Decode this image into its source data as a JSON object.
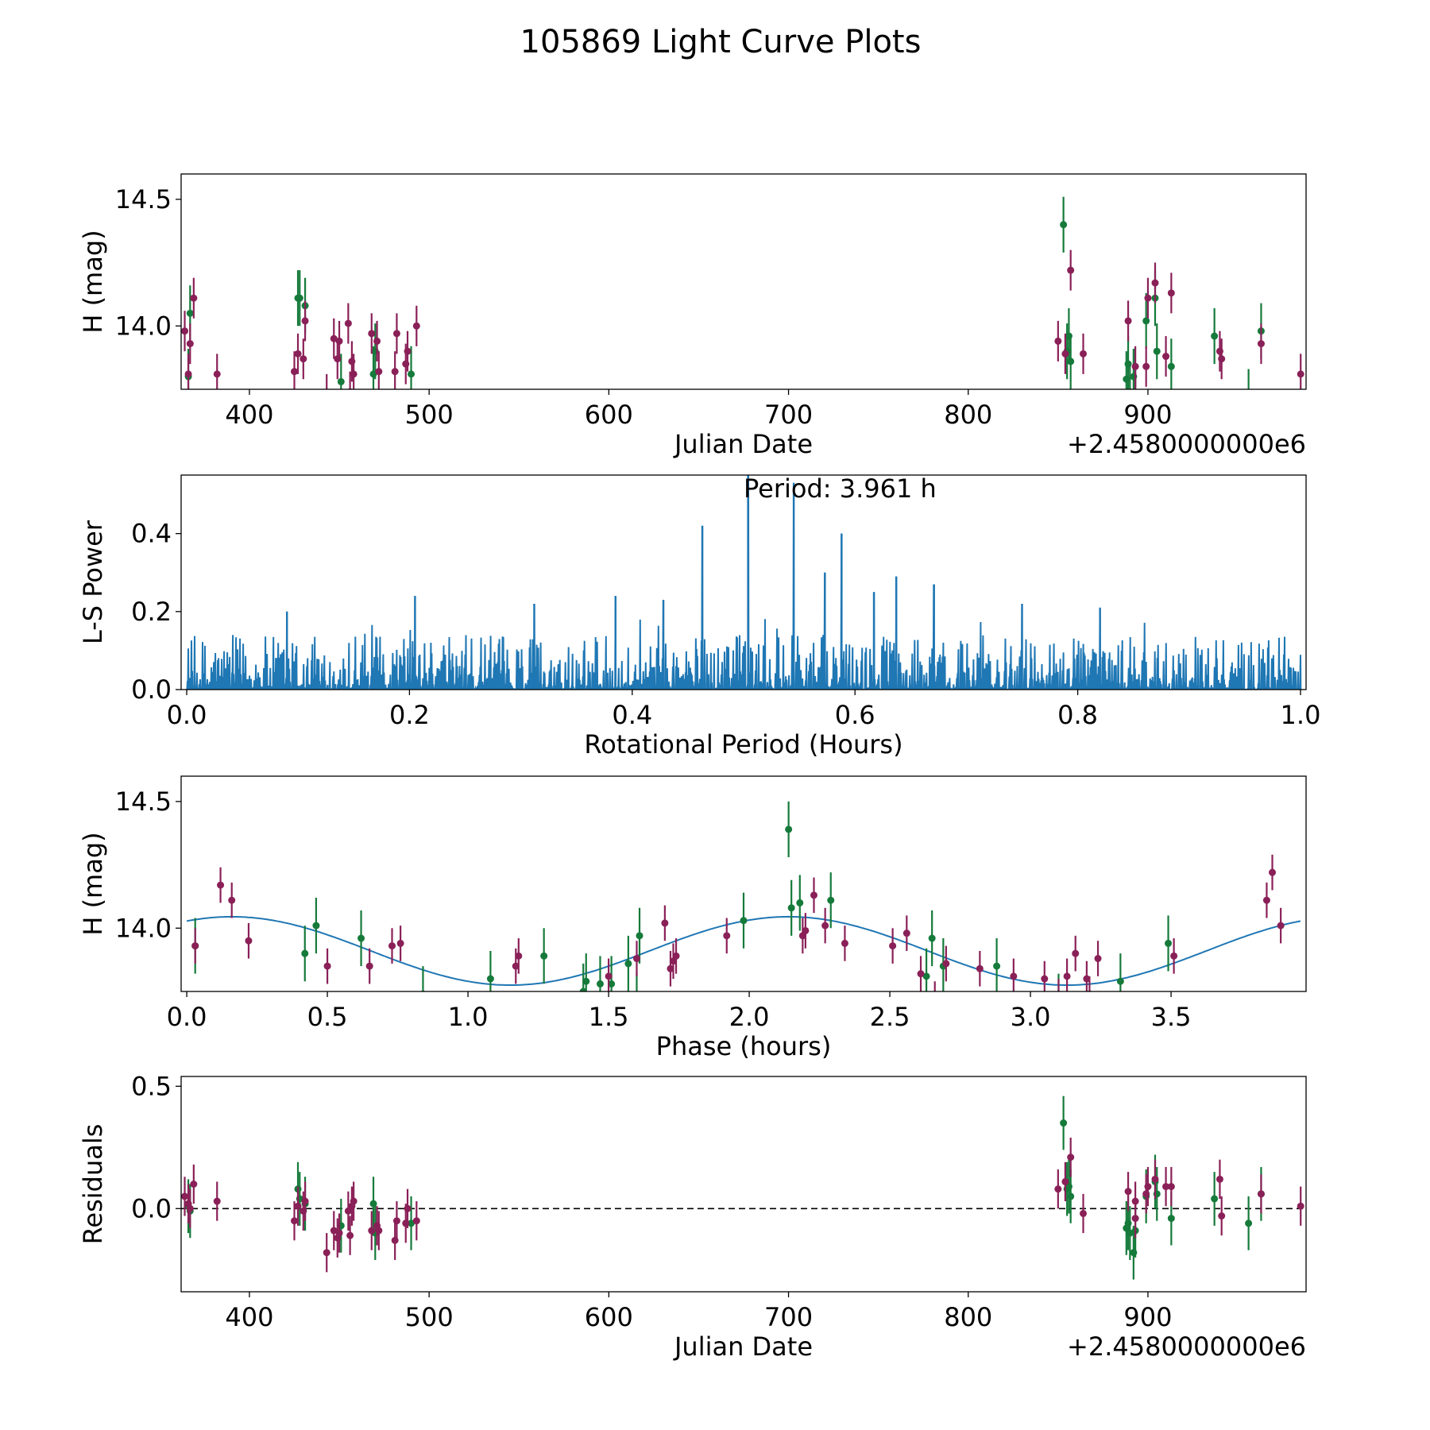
{
  "title": "105869 Light Curve Plots",
  "colors": {
    "green": "#157a3a",
    "maroon": "#8a2058",
    "line": "#1f77b4"
  },
  "chart_data": [
    {
      "id": "lightcurve",
      "type": "scatter",
      "xlabel": "Julian Date",
      "ylabel": "H (mag)",
      "offset_label": "+2.4580000000e6",
      "xlim": [
        362,
        988
      ],
      "ylim": [
        13.75,
        14.6
      ],
      "xticks": [
        "400",
        "500",
        "600",
        "700",
        "800",
        "900"
      ],
      "yticks": [
        "14.0",
        "14.5"
      ],
      "series": [
        {
          "name": "band-green",
          "color": "green",
          "err": 0.11,
          "points": [
            [
              366,
              13.8
            ],
            [
              367,
              14.05
            ],
            [
              427,
              14.11
            ],
            [
              428,
              14.11
            ],
            [
              431,
              14.08
            ],
            [
              451,
              13.78
            ],
            [
              469,
              13.81
            ],
            [
              470,
              13.9
            ],
            [
              490,
              13.81
            ],
            [
              853,
              14.4
            ],
            [
              855,
              13.9
            ],
            [
              856,
              13.96
            ],
            [
              857,
              13.86
            ],
            [
              888,
              13.79
            ],
            [
              889,
              13.85
            ],
            [
              890,
              13.74
            ],
            [
              892,
              13.8
            ],
            [
              893,
              13.72
            ],
            [
              899,
              14.02
            ],
            [
              904,
              14.11
            ],
            [
              905,
              13.9
            ],
            [
              913,
              13.84
            ],
            [
              937,
              13.96
            ],
            [
              956,
              13.72
            ],
            [
              963,
              13.98
            ]
          ]
        },
        {
          "name": "band-maroon",
          "color": "maroon",
          "err": 0.08,
          "points": [
            [
              364,
              13.98
            ],
            [
              366,
              13.81
            ],
            [
              367,
              13.93
            ],
            [
              369,
              14.11
            ],
            [
              382,
              13.81
            ],
            [
              425,
              13.82
            ],
            [
              427,
              13.89
            ],
            [
              430,
              13.87
            ],
            [
              431,
              14.02
            ],
            [
              443,
              13.73
            ],
            [
              447,
              13.95
            ],
            [
              449,
              13.87
            ],
            [
              450,
              13.94
            ],
            [
              455,
              14.01
            ],
            [
              456,
              13.74
            ],
            [
              457,
              13.86
            ],
            [
              458,
              13.81
            ],
            [
              468,
              13.97
            ],
            [
              471,
              13.94
            ],
            [
              472,
              13.82
            ],
            [
              481,
              13.82
            ],
            [
              482,
              13.97
            ],
            [
              487,
              13.85
            ],
            [
              488,
              13.9
            ],
            [
              493,
              14.0
            ],
            [
              850,
              13.94
            ],
            [
              854,
              13.89
            ],
            [
              857,
              14.22
            ],
            [
              864,
              13.89
            ],
            [
              889,
              14.02
            ],
            [
              893,
              13.84
            ],
            [
              893,
              13.73
            ],
            [
              899,
              13.84
            ],
            [
              900,
              14.11
            ],
            [
              904,
              14.17
            ],
            [
              910,
              13.88
            ],
            [
              913,
              14.13
            ],
            [
              940,
              13.9
            ],
            [
              941,
              13.87
            ],
            [
              963,
              13.93
            ],
            [
              985,
              13.81
            ]
          ]
        }
      ]
    },
    {
      "id": "periodogram",
      "type": "line",
      "xlabel": "Rotational Period (Hours)",
      "ylabel": "L-S Power",
      "annotation": "Period: 3.961 h",
      "xlim": [
        -0.005,
        1.005
      ],
      "ylim": [
        0,
        0.55
      ],
      "xticks": [
        "0.0",
        "0.2",
        "0.4",
        "0.6",
        "0.8",
        "1.0"
      ],
      "yticks": [
        "0.0",
        "0.2",
        "0.4"
      ],
      "noise_level": 0.14,
      "peaks": [
        [
          0.463,
          0.42
        ],
        [
          0.504,
          0.55
        ],
        [
          0.545,
          0.53
        ],
        [
          0.588,
          0.4
        ],
        [
          0.573,
          0.3
        ],
        [
          0.637,
          0.29
        ],
        [
          0.671,
          0.27
        ],
        [
          0.617,
          0.25
        ],
        [
          0.205,
          0.24
        ],
        [
          0.385,
          0.24
        ],
        [
          0.312,
          0.22
        ],
        [
          0.428,
          0.23
        ],
        [
          0.75,
          0.22
        ],
        [
          0.82,
          0.21
        ],
        [
          0.09,
          0.2
        ]
      ]
    },
    {
      "id": "phased",
      "type": "scatter",
      "xlabel": "Phase (hours)",
      "ylabel": "H (mag)",
      "xlim": [
        -0.02,
        3.98
      ],
      "ylim": [
        13.75,
        14.6
      ],
      "xticks": [
        "0.0",
        "0.5",
        "1.0",
        "1.5",
        "2.0",
        "2.5",
        "3.0",
        "3.5"
      ],
      "yticks": [
        "14.0",
        "14.5"
      ],
      "model": {
        "mean": 13.91,
        "amplitude": 0.135,
        "period": 1.98,
        "peak_phase": 0.16
      },
      "series": [
        {
          "name": "band-green",
          "color": "green",
          "err": 0.11,
          "points": [
            [
              0.03,
              13.93
            ],
            [
              0.42,
              13.9
            ],
            [
              0.46,
              14.01
            ],
            [
              0.62,
              13.96
            ],
            [
              0.84,
              13.74
            ],
            [
              1.08,
              13.8
            ],
            [
              1.27,
              13.89
            ],
            [
              1.41,
              13.75
            ],
            [
              1.42,
              13.79
            ],
            [
              1.47,
              13.78
            ],
            [
              1.51,
              13.78
            ],
            [
              1.57,
              13.86
            ],
            [
              1.6,
              13.72
            ],
            [
              1.61,
              13.97
            ],
            [
              1.98,
              14.03
            ],
            [
              2.14,
              14.39
            ],
            [
              2.15,
              14.08
            ],
            [
              2.18,
              14.1
            ],
            [
              2.29,
              14.11
            ],
            [
              2.63,
              13.81
            ],
            [
              2.65,
              13.96
            ],
            [
              2.69,
              13.85
            ],
            [
              2.88,
              13.85
            ],
            [
              3.1,
              13.71
            ],
            [
              3.32,
              13.79
            ],
            [
              3.49,
              13.94
            ]
          ]
        },
        {
          "name": "band-maroon",
          "color": "maroon",
          "err": 0.07,
          "points": [
            [
              0.03,
              13.93
            ],
            [
              0.12,
              14.17
            ],
            [
              0.16,
              14.11
            ],
            [
              0.22,
              13.95
            ],
            [
              0.5,
              13.85
            ],
            [
              0.65,
              13.85
            ],
            [
              0.73,
              13.93
            ],
            [
              0.76,
              13.94
            ],
            [
              1.17,
              13.85
            ],
            [
              1.18,
              13.89
            ],
            [
              1.5,
              13.81
            ],
            [
              1.6,
              13.88
            ],
            [
              1.7,
              14.02
            ],
            [
              1.72,
              13.84
            ],
            [
              1.73,
              13.87
            ],
            [
              1.74,
              13.89
            ],
            [
              1.92,
              13.97
            ],
            [
              2.19,
              13.97
            ],
            [
              2.2,
              13.99
            ],
            [
              2.23,
              14.13
            ],
            [
              2.27,
              14.01
            ],
            [
              2.34,
              13.94
            ],
            [
              2.51,
              13.93
            ],
            [
              2.56,
              13.98
            ],
            [
              2.61,
              13.82
            ],
            [
              2.66,
              13.72
            ],
            [
              2.7,
              13.86
            ],
            [
              2.82,
              13.84
            ],
            [
              2.94,
              13.81
            ],
            [
              3.05,
              13.8
            ],
            [
              3.1,
              13.73
            ],
            [
              3.13,
              13.81
            ],
            [
              3.16,
              13.9
            ],
            [
              3.2,
              13.8
            ],
            [
              3.21,
              13.74
            ],
            [
              3.24,
              13.88
            ],
            [
              3.51,
              13.89
            ],
            [
              3.84,
              14.11
            ],
            [
              3.86,
              14.22
            ],
            [
              3.89,
              14.01
            ]
          ]
        }
      ]
    },
    {
      "id": "residuals",
      "type": "scatter",
      "xlabel": "Julian Date",
      "ylabel": "Residuals",
      "offset_label": "+2.4580000000e6",
      "xlim": [
        362,
        988
      ],
      "ylim": [
        -0.34,
        0.54
      ],
      "xticks": [
        "400",
        "500",
        "600",
        "700",
        "800",
        "900"
      ],
      "yticks": [
        "0.0",
        "0.5"
      ],
      "zero_line": true,
      "series": [
        {
          "name": "band-green",
          "color": "green",
          "err": 0.11,
          "points": [
            [
              366,
              0.01
            ],
            [
              367,
              -0.01
            ],
            [
              427,
              0.08
            ],
            [
              428,
              0.04
            ],
            [
              431,
              0.02
            ],
            [
              451,
              -0.07
            ],
            [
              469,
              0.02
            ],
            [
              470,
              -0.1
            ],
            [
              490,
              -0.06
            ],
            [
              853,
              0.35
            ],
            [
              855,
              0.08
            ],
            [
              856,
              0.09
            ],
            [
              857,
              0.05
            ],
            [
              888,
              -0.08
            ],
            [
              889,
              -0.06
            ],
            [
              890,
              -0.1
            ],
            [
              892,
              -0.18
            ],
            [
              893,
              -0.09
            ],
            [
              899,
              0.05
            ],
            [
              904,
              0.11
            ],
            [
              905,
              0.06
            ],
            [
              913,
              -0.04
            ],
            [
              937,
              0.04
            ],
            [
              956,
              -0.06
            ],
            [
              963,
              0.06
            ]
          ]
        },
        {
          "name": "band-maroon",
          "color": "maroon",
          "err": 0.08,
          "points": [
            [
              364,
              0.05
            ],
            [
              366,
              0.02
            ],
            [
              367,
              0.0
            ],
            [
              369,
              0.1
            ],
            [
              382,
              0.03
            ],
            [
              425,
              -0.05
            ],
            [
              427,
              0.01
            ],
            [
              430,
              -0.01
            ],
            [
              431,
              0.03
            ],
            [
              443,
              -0.18
            ],
            [
              447,
              -0.09
            ],
            [
              449,
              -0.12
            ],
            [
              450,
              -0.1
            ],
            [
              455,
              -0.01
            ],
            [
              456,
              -0.11
            ],
            [
              457,
              0.01
            ],
            [
              458,
              0.03
            ],
            [
              468,
              -0.09
            ],
            [
              471,
              -0.07
            ],
            [
              472,
              -0.09
            ],
            [
              481,
              -0.13
            ],
            [
              482,
              -0.05
            ],
            [
              487,
              -0.06
            ],
            [
              488,
              0.0
            ],
            [
              493,
              -0.05
            ],
            [
              850,
              0.08
            ],
            [
              854,
              0.11
            ],
            [
              857,
              0.21
            ],
            [
              864,
              -0.02
            ],
            [
              889,
              0.07
            ],
            [
              893,
              -0.04
            ],
            [
              893,
              0.03
            ],
            [
              899,
              0.06
            ],
            [
              900,
              0.09
            ],
            [
              904,
              0.12
            ],
            [
              910,
              0.09
            ],
            [
              913,
              0.09
            ],
            [
              940,
              0.12
            ],
            [
              941,
              -0.03
            ],
            [
              963,
              0.06
            ],
            [
              985,
              0.01
            ]
          ]
        }
      ]
    }
  ]
}
